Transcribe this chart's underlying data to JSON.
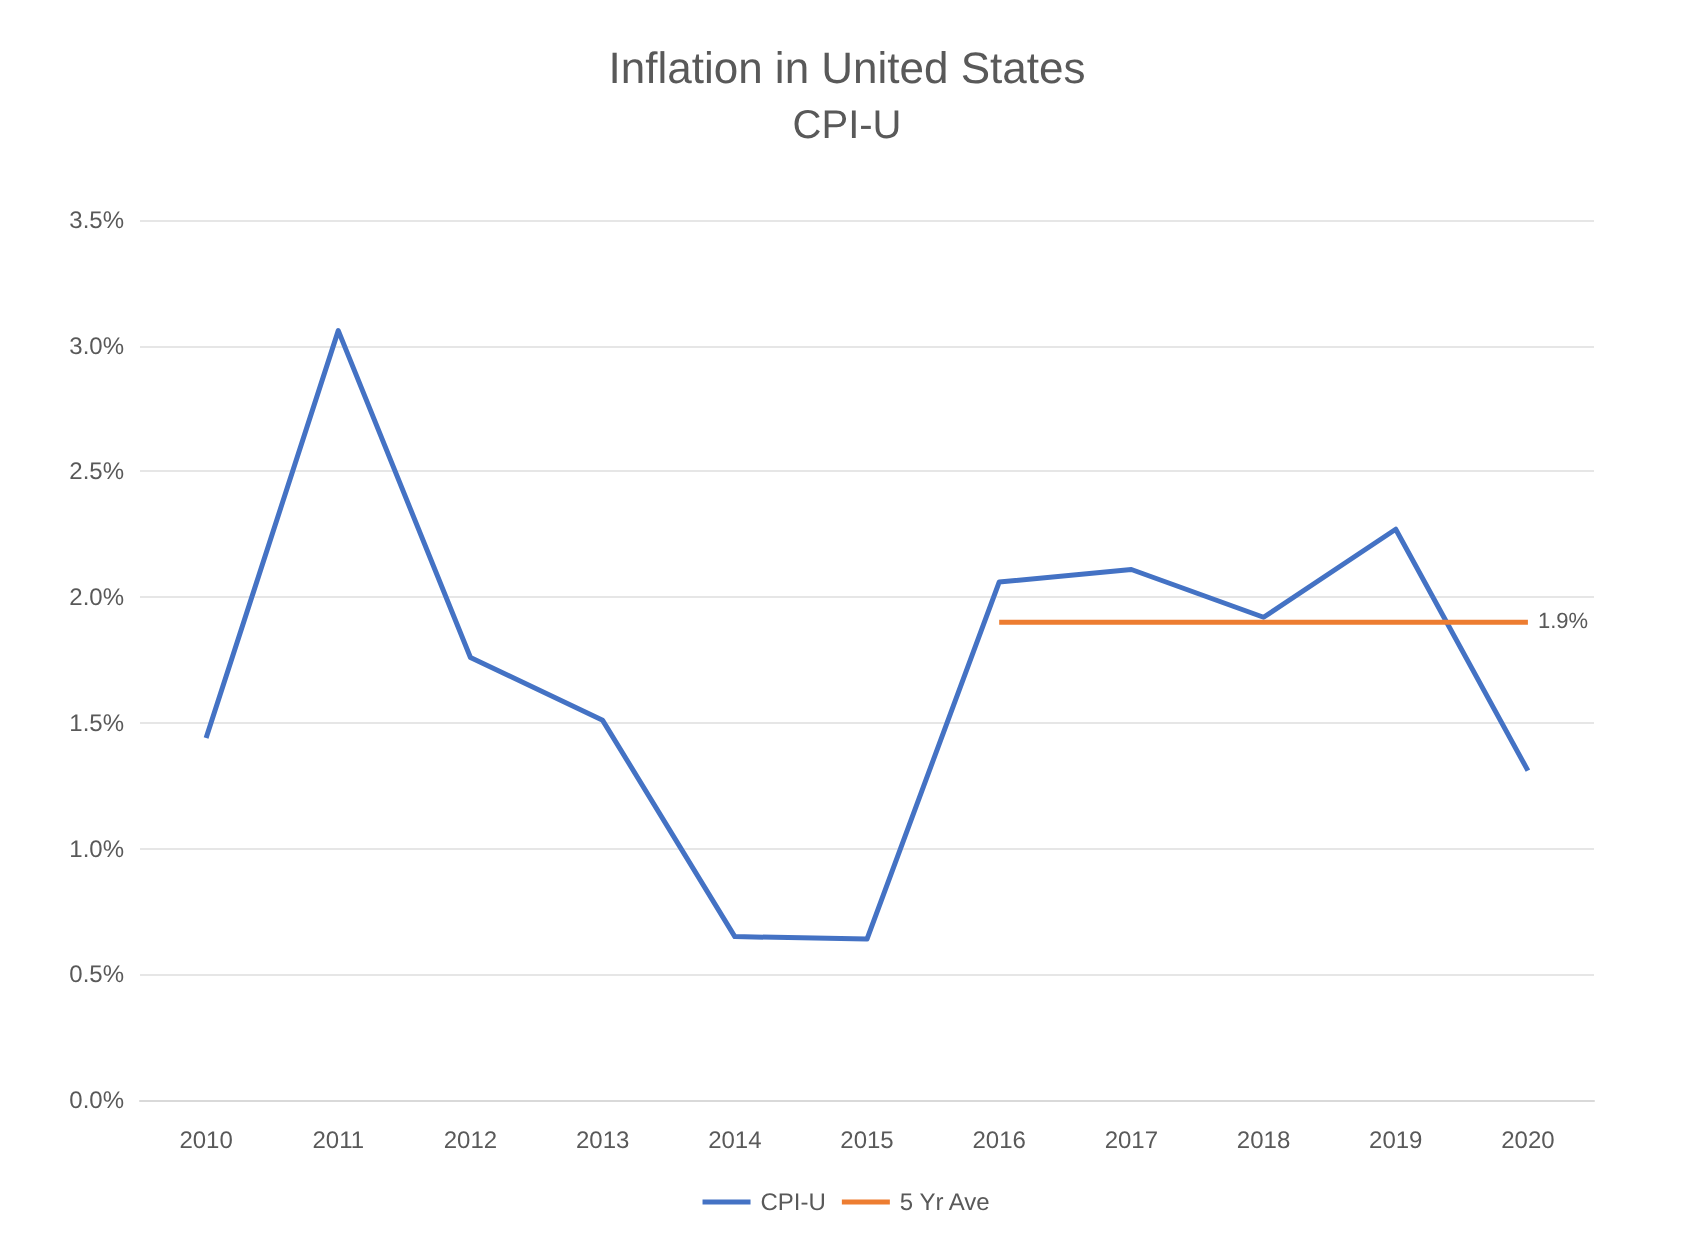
{
  "chart_data": {
    "type": "line",
    "title": "Inflation in United States",
    "subtitle": "CPI-U",
    "categories": [
      "2010",
      "2011",
      "2012",
      "2013",
      "2014",
      "2015",
      "2016",
      "2017",
      "2018",
      "2019",
      "2020"
    ],
    "series": [
      {
        "name": "CPI-U",
        "color": "#4472c4",
        "values": [
          1.44,
          3.06,
          1.76,
          1.51,
          0.65,
          0.64,
          2.06,
          2.11,
          1.92,
          2.27,
          1.31
        ]
      },
      {
        "name": "5 Yr Ave",
        "color": "#ed7d31",
        "values": [
          null,
          null,
          null,
          null,
          null,
          null,
          1.9,
          1.9,
          1.9,
          1.9,
          1.9
        ],
        "value_labels": [
          null,
          null,
          null,
          null,
          null,
          null,
          null,
          null,
          null,
          null,
          "1.9%"
        ]
      }
    ],
    "ylim": [
      0,
      3.5
    ],
    "yticks": [
      {
        "value": 0,
        "label": "0.0%"
      },
      {
        "value": 0.5,
        "label": "0.5%"
      },
      {
        "value": 1,
        "label": "1.0%"
      },
      {
        "value": 1.5,
        "label": "1.5%"
      },
      {
        "value": 2,
        "label": "2.0%"
      },
      {
        "value": 2.5,
        "label": "2.5%"
      },
      {
        "value": 3,
        "label": "3.0%"
      },
      {
        "value": 3.5,
        "label": "3.5%"
      }
    ],
    "grid": "y",
    "legend": "bottom",
    "marker": "none",
    "line_style": "solid"
  }
}
